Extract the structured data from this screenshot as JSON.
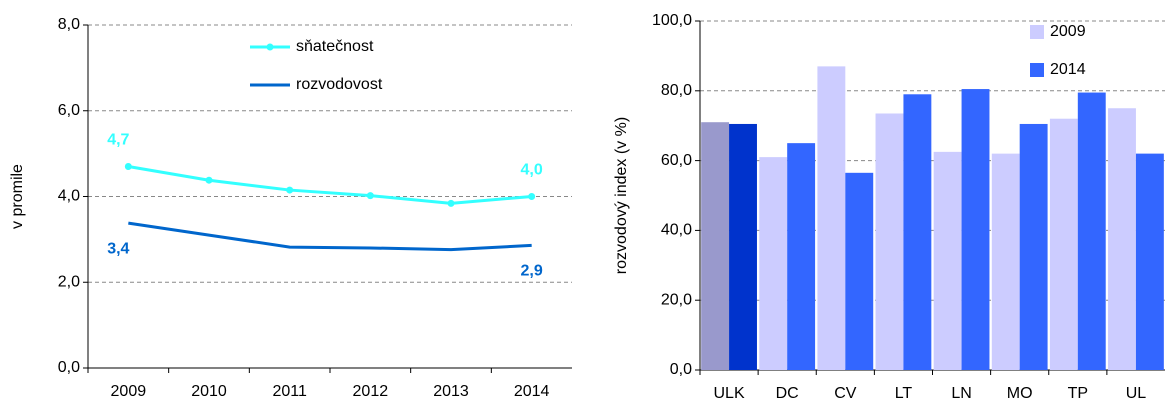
{
  "chart_data": [
    {
      "type": "line",
      "y_label": "v promile",
      "categories": [
        "2009",
        "2010",
        "2011",
        "2012",
        "2013",
        "2014"
      ],
      "series": [
        {
          "name": "sňatečnost",
          "color": "#33ffff",
          "markers": true,
          "values": [
            4.7,
            4.38,
            4.15,
            4.02,
            3.84,
            4.0
          ],
          "value_labels": [
            "4,7",
            null,
            null,
            null,
            null,
            "4,0"
          ]
        },
        {
          "name": "rozvodovost",
          "color": "#0066cc",
          "markers": false,
          "values": [
            3.38,
            3.1,
            2.82,
            2.8,
            2.76,
            2.86
          ],
          "value_labels": [
            "3,4",
            null,
            null,
            null,
            null,
            "2,9"
          ]
        }
      ],
      "ylim": [
        0,
        8
      ],
      "yticks": [
        {
          "value": 0,
          "label": "0,0"
        },
        {
          "value": 2,
          "label": "2,0"
        },
        {
          "value": 4,
          "label": "4,0"
        },
        {
          "value": 6,
          "label": "6,0"
        },
        {
          "value": 8,
          "label": "8,0"
        }
      ],
      "grid": true,
      "legend": "top"
    },
    {
      "type": "bar",
      "y_label": "rozvodový index (v %)",
      "categories": [
        "ULK",
        "DC",
        "CV",
        "LT",
        "LN",
        "MO",
        "TP",
        "UL"
      ],
      "series": [
        {
          "name": "2009",
          "color": "#ccccff",
          "colors": [
            "#9999cc",
            "#ccccff",
            "#ccccff",
            "#ccccff",
            "#ccccff",
            "#ccccff",
            "#ccccff",
            "#ccccff"
          ],
          "values": [
            71,
            61,
            87,
            73.5,
            62.5,
            62,
            72,
            75
          ]
        },
        {
          "name": "2014",
          "color": "#3366ff",
          "colors": [
            "#0033cc",
            "#3366ff",
            "#3366ff",
            "#3366ff",
            "#3366ff",
            "#3366ff",
            "#3366ff",
            "#3366ff"
          ],
          "values": [
            70.5,
            65,
            56.5,
            79,
            80.5,
            70.5,
            79.5,
            62
          ]
        }
      ],
      "ylim": [
        0,
        100
      ],
      "yticks": [
        {
          "value": 0,
          "label": "0,0"
        },
        {
          "value": 20,
          "label": "20,0"
        },
        {
          "value": 40,
          "label": "40,0"
        },
        {
          "value": 60,
          "label": "60,0"
        },
        {
          "value": 80,
          "label": "80,0"
        },
        {
          "value": 100,
          "label": "100,0"
        }
      ],
      "grid": true,
      "legend": "top-right"
    }
  ]
}
